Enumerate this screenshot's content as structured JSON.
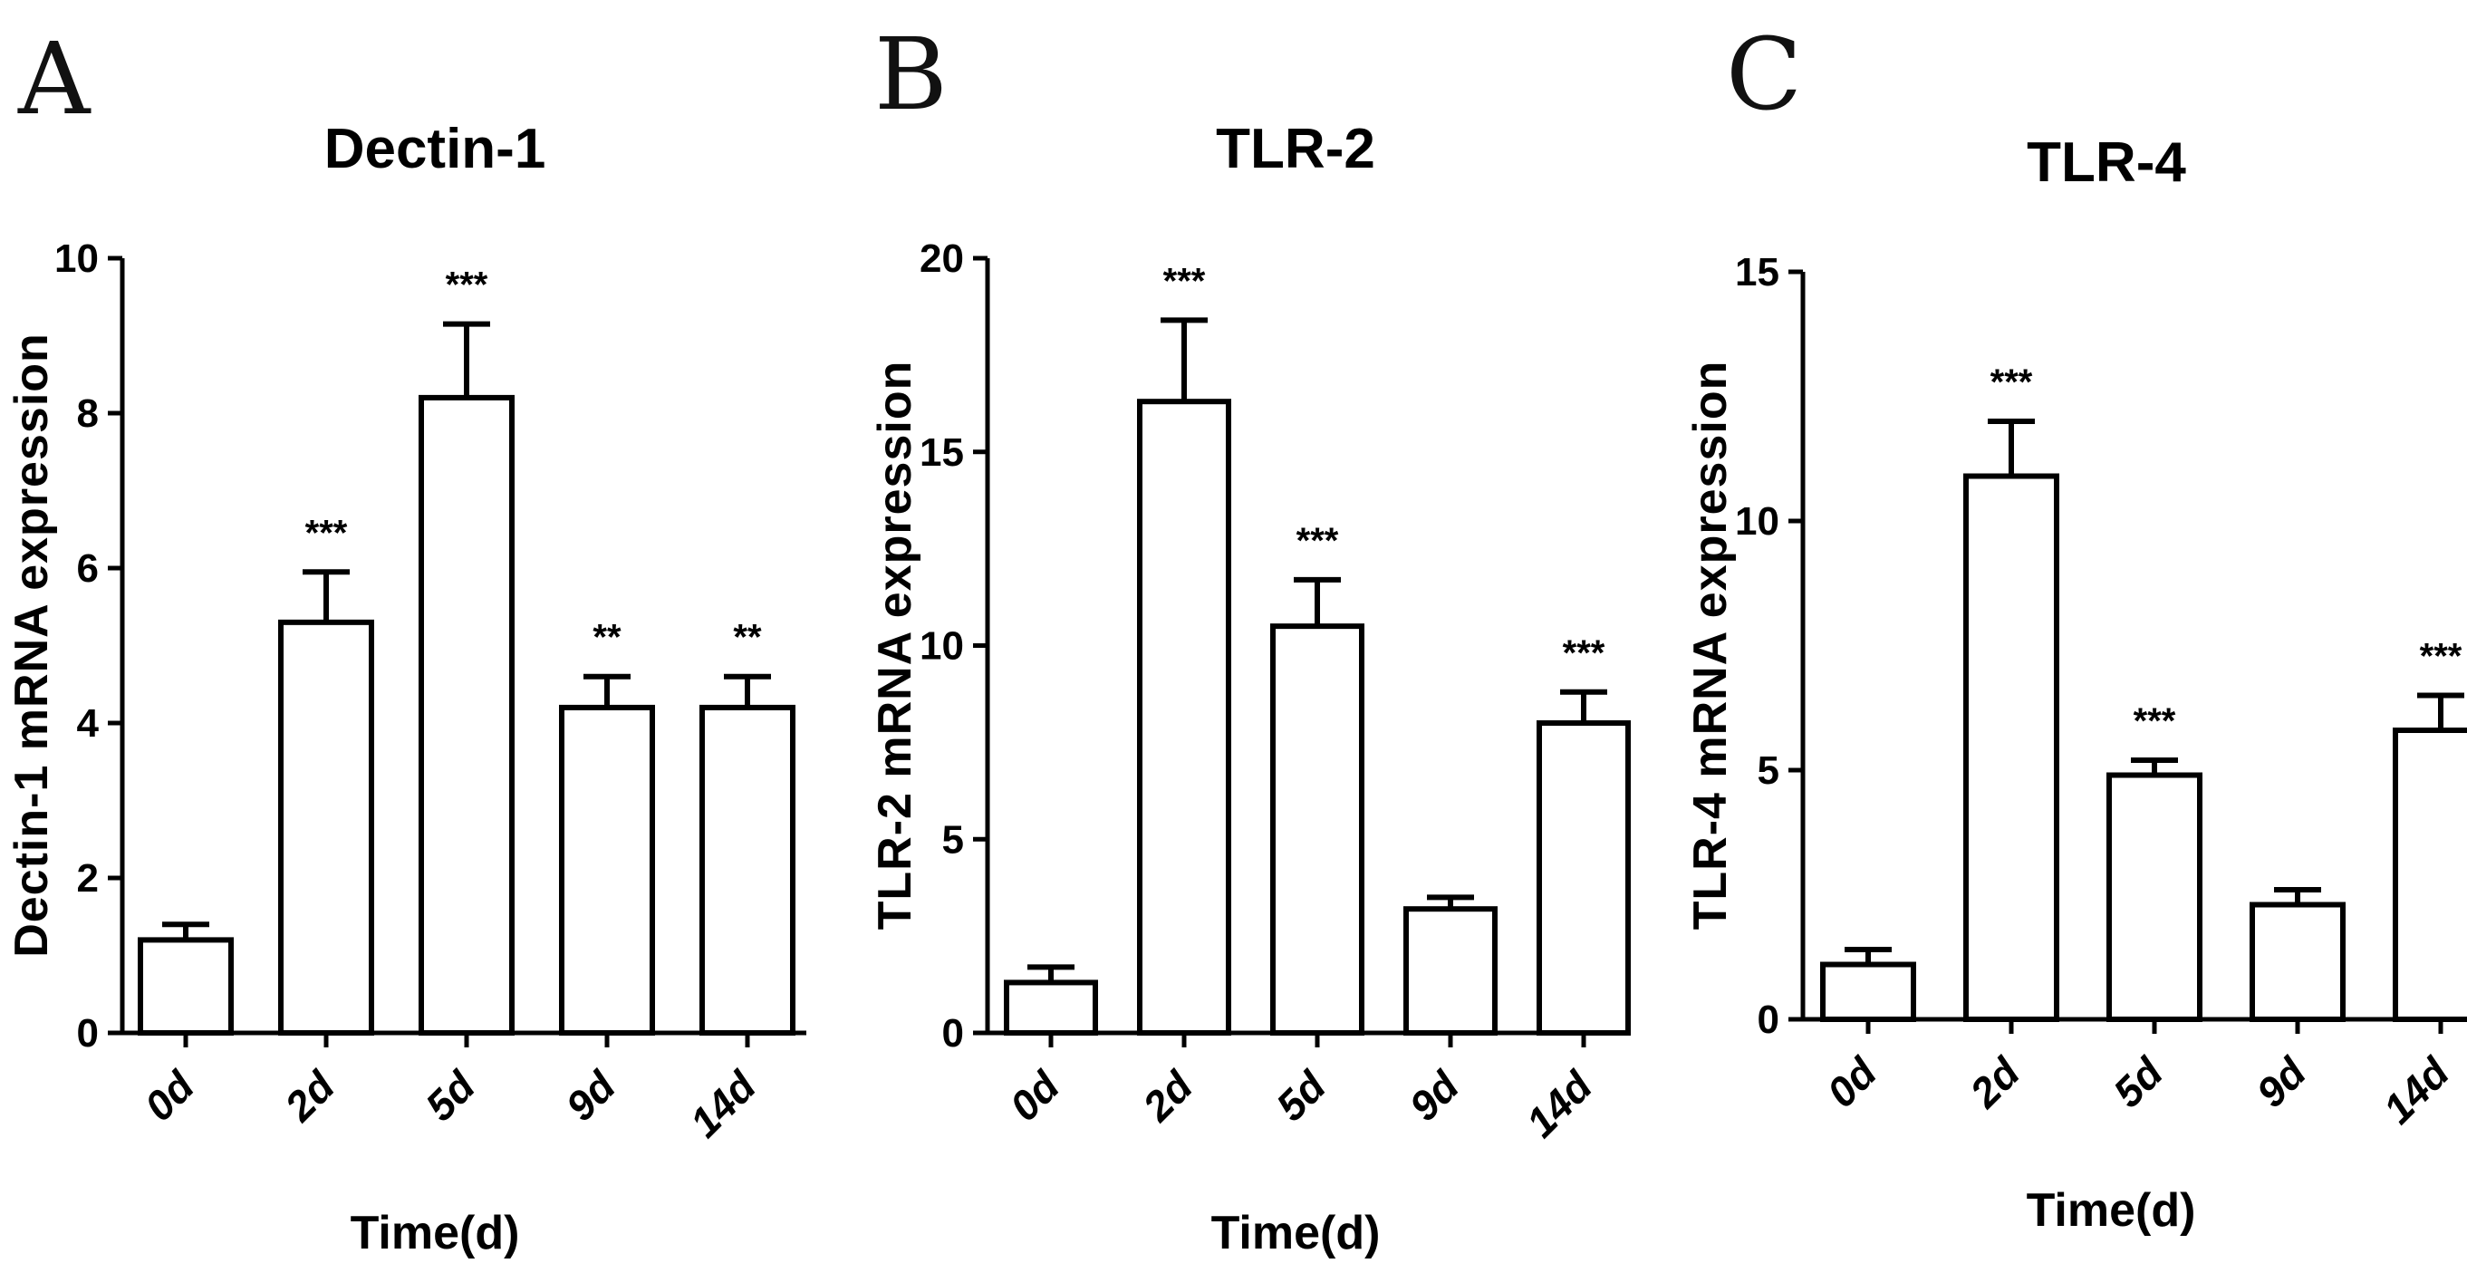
{
  "chart_data": [
    {
      "type": "bar",
      "panel": "A",
      "title": "Dectin-1",
      "ylabel": "Dectin-1 mRNA expression",
      "xlabel": "Time(d)",
      "ylim": [
        0,
        10
      ],
      "yticks": [
        0,
        2,
        4,
        6,
        8,
        10
      ],
      "categories": [
        "0d",
        "2d",
        "5d",
        "9d",
        "14d"
      ],
      "values": [
        1.2,
        5.3,
        8.2,
        4.2,
        4.2
      ],
      "errors": [
        0.2,
        0.65,
        0.95,
        0.4,
        0.4
      ],
      "significance": [
        "",
        "***",
        "***",
        "**",
        "**"
      ]
    },
    {
      "type": "bar",
      "panel": "B",
      "title": "TLR-2",
      "ylabel": "TLR-2 mRNA expression",
      "xlabel": "Time(d)",
      "ylim": [
        0,
        20
      ],
      "yticks": [
        0,
        5,
        10,
        15,
        20
      ],
      "categories": [
        "0d",
        "2d",
        "5d",
        "9d",
        "14d"
      ],
      "values": [
        1.3,
        16.3,
        10.5,
        3.2,
        8.0
      ],
      "errors": [
        0.4,
        2.1,
        1.2,
        0.3,
        0.8
      ],
      "significance": [
        "",
        "***",
        "***",
        "",
        "***"
      ]
    },
    {
      "type": "bar",
      "panel": "C",
      "title": "TLR-4",
      "ylabel": "TLR-4 mRNA expression",
      "xlabel": "Time(d)",
      "ylim": [
        0,
        15
      ],
      "yticks": [
        0,
        5,
        10,
        15
      ],
      "categories": [
        "0d",
        "2d",
        "5d",
        "9d",
        "14d"
      ],
      "values": [
        1.1,
        10.9,
        4.9,
        2.3,
        5.8
      ],
      "errors": [
        0.3,
        1.1,
        0.3,
        0.3,
        0.7
      ],
      "significance": [
        "",
        "***",
        "***",
        "",
        "***"
      ]
    }
  ]
}
